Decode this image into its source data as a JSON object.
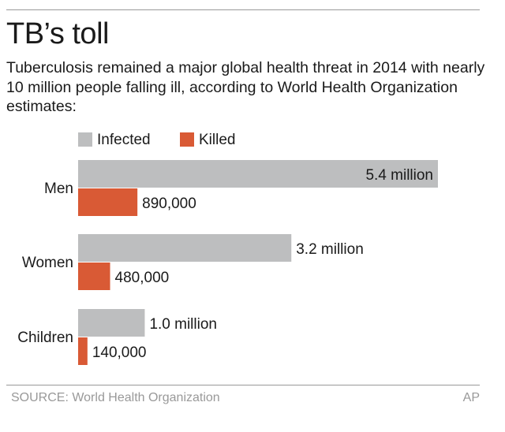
{
  "title": "TB’s toll",
  "subtitle": "Tuberculosis remained a major global health threat in 2014 with nearly 10 million people falling ill, according to World Health Organization estimates:",
  "source": "SOURCE: World Health Organization",
  "credit": "AP",
  "colors": {
    "infected": "#bdbebf",
    "killed": "#d95a35"
  },
  "chart_data": {
    "type": "bar",
    "orientation": "horizontal",
    "categories": [
      "Men",
      "Women",
      "Children"
    ],
    "series": [
      {
        "name": "Infected",
        "values": [
          5400000,
          3200000,
          1000000
        ],
        "labels": [
          "5.4 million",
          "3.2 million",
          "1.0 million"
        ]
      },
      {
        "name": "Killed",
        "values": [
          890000,
          480000,
          140000
        ],
        "labels": [
          "890,000",
          "480,000",
          "140,000"
        ]
      }
    ],
    "legend": "top-left",
    "grid": false
  }
}
